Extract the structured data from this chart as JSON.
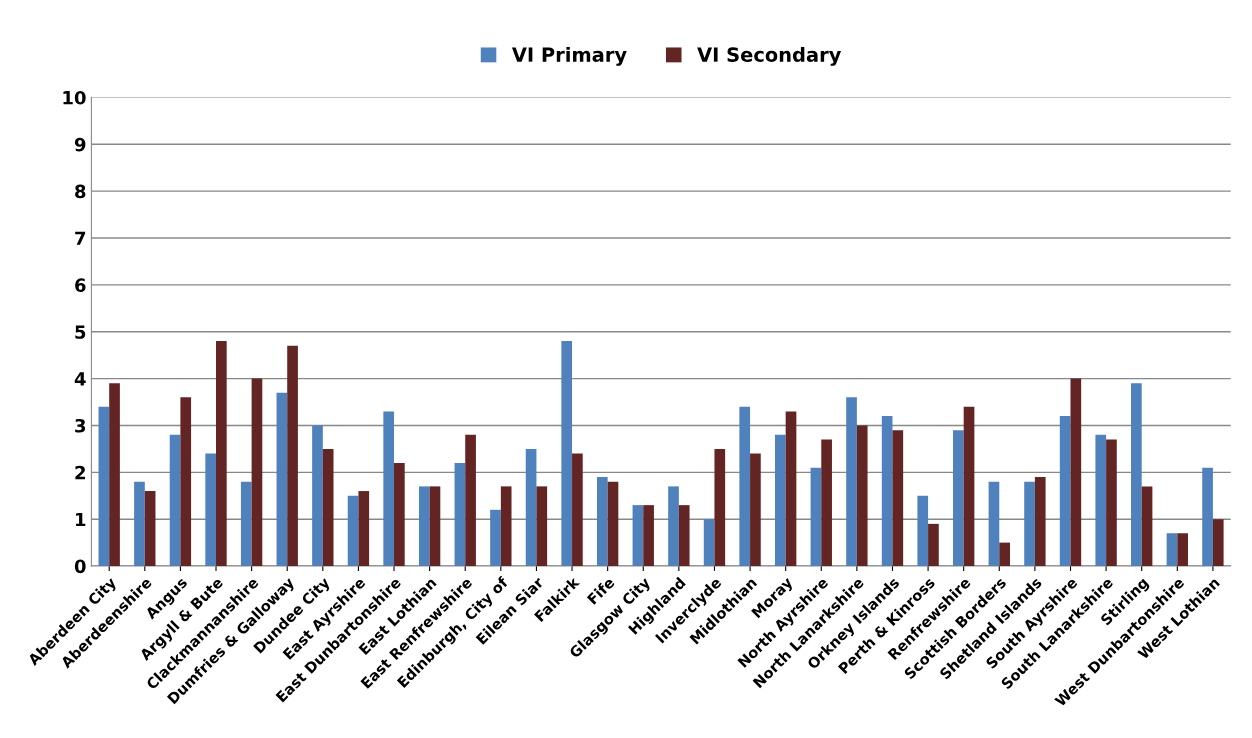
{
  "chart_data": {
    "type": "bar",
    "categories": [
      "Aberdeen City",
      "Aberdeenshire",
      "Angus",
      "Argyll & Bute",
      "Clackmannanshire",
      "Dumfries & Galloway",
      "Dundee City",
      "East Ayrshire",
      "East Dunbartonshire",
      "East Lothian",
      "East Renfrewshire",
      "Edinburgh, City of",
      "Eilean Siar",
      "Falkirk",
      "Fife",
      "Glasgow City",
      "Highland",
      "Inverclyde",
      "Midlothian",
      "Moray",
      "North Ayrshire",
      "North Lanarkshire",
      "Orkney Islands",
      "Perth & Kinross",
      "Renfrewshire",
      "Scottish Borders",
      "Shetland Islands",
      "South Ayrshire",
      "South Lanarkshire",
      "Stirling",
      "West Dunbartonshire",
      "West Lothian"
    ],
    "series": [
      {
        "name": "VI Primary",
        "color": "#4f81bd",
        "values": [
          3.4,
          1.8,
          2.8,
          2.4,
          1.8,
          3.7,
          3.0,
          1.5,
          3.3,
          1.7,
          2.2,
          1.2,
          2.5,
          4.8,
          1.9,
          1.3,
          1.7,
          1.0,
          3.4,
          2.8,
          2.1,
          3.6,
          3.2,
          1.5,
          2.9,
          1.8,
          1.8,
          3.2,
          2.8,
          3.9,
          0.7,
          2.1
        ]
      },
      {
        "name": "VI Secondary",
        "color": "#632523",
        "values": [
          3.9,
          1.6,
          3.6,
          4.8,
          4.0,
          4.7,
          2.5,
          1.6,
          2.2,
          1.7,
          2.8,
          1.7,
          1.7,
          2.4,
          1.8,
          1.3,
          1.3,
          2.5,
          2.4,
          3.3,
          2.7,
          3.0,
          2.9,
          0.9,
          3.4,
          0.5,
          1.9,
          4.0,
          2.7,
          1.7,
          0.7,
          1.0
        ]
      }
    ],
    "ylim": [
      0,
      10
    ],
    "yticks": [
      0,
      1,
      2,
      3,
      4,
      5,
      6,
      7,
      8,
      9,
      10
    ],
    "grid": "y",
    "legend": "top"
  }
}
